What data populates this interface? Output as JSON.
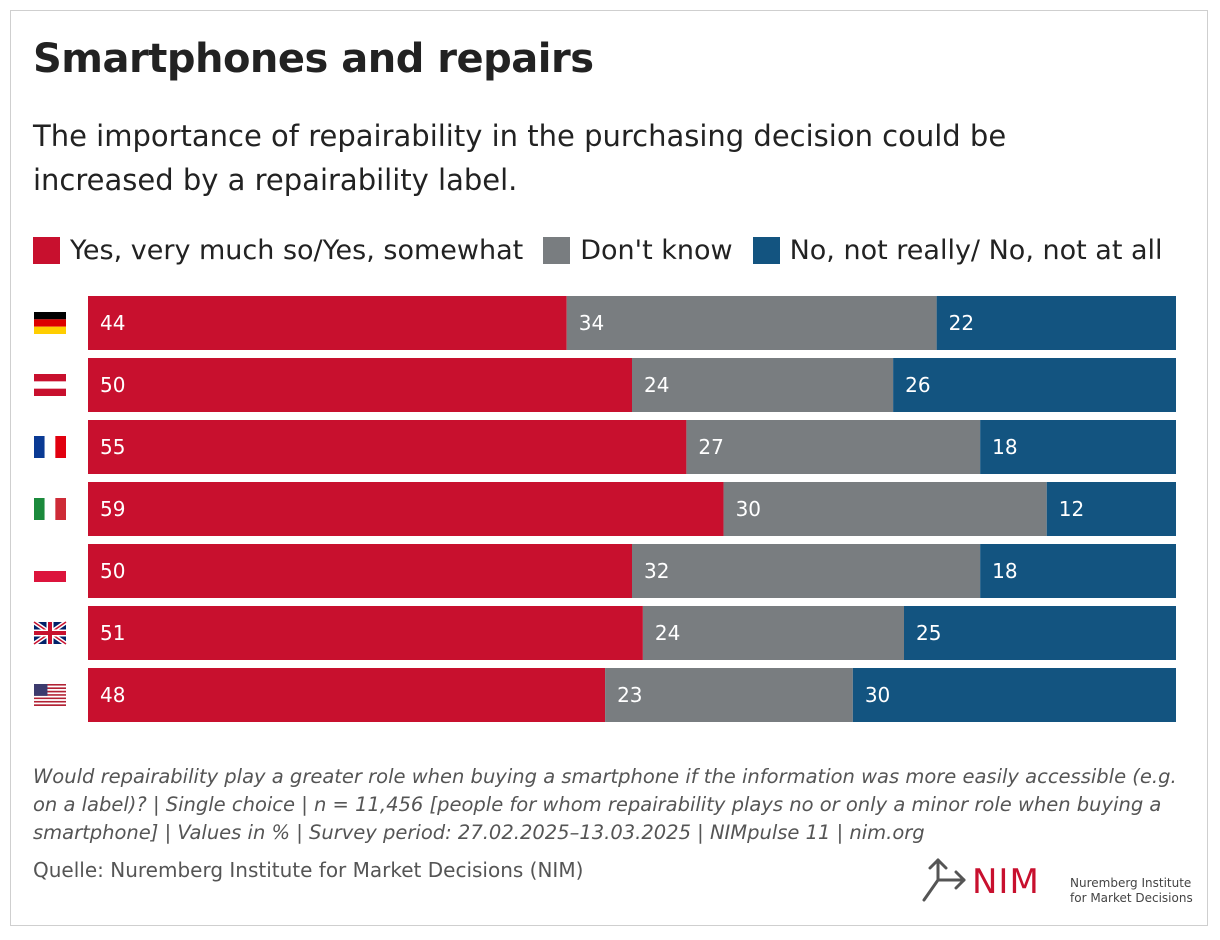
{
  "title": "Smartphones and repairs",
  "subtitle": "The importance of repairability in the purchasing decision could be increased by a repairability label.",
  "colors": {
    "yes": "#c8102e",
    "dont_know": "#797d80",
    "no": "#135480"
  },
  "chart_data": {
    "type": "bar",
    "orientation": "horizontal",
    "stacked": true,
    "categories": [
      "Germany",
      "Austria",
      "France",
      "Italy",
      "Poland",
      "United Kingdom",
      "United States"
    ],
    "category_icons": [
      "flag-germany-icon",
      "flag-austria-icon",
      "flag-france-icon",
      "flag-italy-icon",
      "flag-poland-icon",
      "flag-uk-icon",
      "flag-us-icon"
    ],
    "series": [
      {
        "name": "Yes, very much so/Yes, somewhat",
        "values": [
          44,
          50,
          55,
          59,
          50,
          51,
          48
        ]
      },
      {
        "name": "Don't know",
        "values": [
          34,
          24,
          27,
          30,
          32,
          24,
          23
        ]
      },
      {
        "name": "No, not really/ No, not at all",
        "values": [
          22,
          26,
          18,
          12,
          18,
          25,
          30
        ]
      }
    ],
    "xlim": [
      0,
      100
    ],
    "legend": "top-left",
    "grid": false,
    "data_labels": true
  },
  "footnote": "Would repairability play a greater role when buying a smartphone if the information was more easily accessible (e.g. on a label)? | Single choice | n = 11,456 [people for whom repairability plays no or only a minor role when buying a smartphone] | Values in % | Survey period: 27.02.2025–13.03.2025 | NIMpulse 11 | nim.org",
  "source": "Quelle: Nuremberg Institute for Market Decisions (NIM)",
  "logo": {
    "wordmark": "NIM",
    "name": "Nuremberg Institute for Market Decisions"
  }
}
